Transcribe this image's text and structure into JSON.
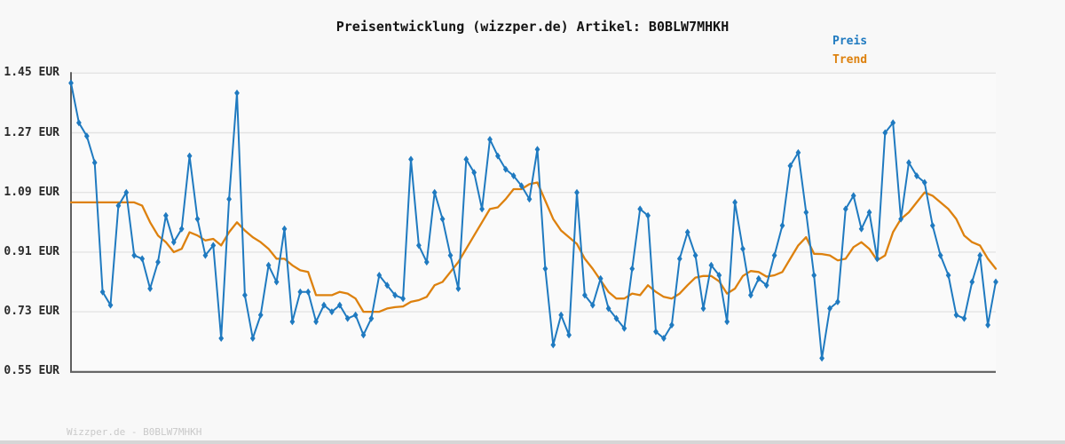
{
  "title": "Preisentwicklung (wizzper.de) Artikel: B0BLW7MHKH",
  "legend": {
    "preis": "Preis",
    "trend": "Trend"
  },
  "watermark": "Wizzper.de - B0BLW7MHKH",
  "colors": {
    "preis": "#1f7ac0",
    "trend": "#dd810e",
    "grid": "#e3e3e3",
    "axis": "#5f5f5f",
    "plot_background": "#fafafa",
    "page_background": "#f8f8f8",
    "title_text": "#141414",
    "tick_text": "#2b2b2b",
    "watermark_text": "#c9c9c9",
    "footer_bar": "#d6d6d6"
  },
  "chart_data": {
    "type": "line",
    "title": "Preisentwicklung (wizzper.de) Artikel: B0BLW7MHKH",
    "xlabel": "",
    "ylabel": "EUR",
    "ylim": [
      0.55,
      1.45
    ],
    "grid": "horizontal",
    "x_tick_labels": "none",
    "legend_position": "top-right",
    "y_ticks": [
      {
        "label": "1.45 EUR",
        "value": 1.45
      },
      {
        "label": "1.27 EUR",
        "value": 1.27
      },
      {
        "label": "1.09 EUR",
        "value": 1.09
      },
      {
        "label": "0.91 EUR",
        "value": 0.91
      },
      {
        "label": "0.73 EUR",
        "value": 0.73
      },
      {
        "label": "0.55 EUR",
        "value": 0.55
      }
    ],
    "series": [
      {
        "name": "Preis",
        "color": "#1f7ac0",
        "marker": "diamond",
        "values": [
          1.42,
          1.3,
          1.26,
          1.18,
          0.79,
          0.75,
          1.05,
          1.09,
          0.9,
          0.89,
          0.8,
          0.88,
          1.02,
          0.94,
          0.98,
          1.2,
          1.01,
          0.9,
          0.93,
          0.65,
          1.07,
          1.39,
          0.78,
          0.65,
          0.72,
          0.87,
          0.82,
          0.98,
          0.7,
          0.79,
          0.79,
          0.7,
          0.75,
          0.73,
          0.75,
          0.71,
          0.72,
          0.66,
          0.71,
          0.84,
          0.81,
          0.78,
          0.77,
          1.19,
          0.93,
          0.88,
          1.09,
          1.01,
          0.9,
          0.8,
          1.19,
          1.15,
          1.04,
          1.25,
          1.2,
          1.16,
          1.14,
          1.11,
          1.07,
          1.22,
          0.86,
          0.63,
          0.72,
          0.66,
          1.09,
          0.78,
          0.75,
          0.83,
          0.74,
          0.71,
          0.68,
          0.86,
          1.04,
          1.02,
          0.67,
          0.65,
          0.69,
          0.89,
          0.97,
          0.9,
          0.74,
          0.87,
          0.84,
          0.7,
          1.06,
          0.92,
          0.78,
          0.83,
          0.81,
          0.9,
          0.99,
          1.17,
          1.21,
          1.03,
          0.84,
          0.59,
          0.74,
          0.76,
          1.04,
          1.08,
          0.98,
          1.03,
          0.89,
          1.27,
          1.3,
          1.01,
          1.18,
          1.14,
          1.12,
          0.99,
          0.9,
          0.84,
          0.72,
          0.71,
          0.82,
          0.9,
          0.69,
          0.82
        ]
      },
      {
        "name": "Trend",
        "color": "#dd810e",
        "marker": "none",
        "values": [
          1.06,
          1.06,
          1.06,
          1.06,
          1.06,
          1.06,
          1.06,
          1.06,
          1.06,
          1.05,
          1.0,
          0.96,
          0.94,
          0.91,
          0.92,
          0.97,
          0.96,
          0.945,
          0.95,
          0.93,
          0.97,
          1.0,
          0.975,
          0.955,
          0.94,
          0.92,
          0.89,
          0.89,
          0.87,
          0.855,
          0.85,
          0.78,
          0.78,
          0.78,
          0.79,
          0.785,
          0.77,
          0.73,
          0.73,
          0.73,
          0.74,
          0.744,
          0.746,
          0.76,
          0.765,
          0.775,
          0.81,
          0.82,
          0.85,
          0.88,
          0.92,
          0.96,
          1.0,
          1.04,
          1.045,
          1.07,
          1.1,
          1.1,
          1.115,
          1.12,
          1.065,
          1.01,
          0.975,
          0.955,
          0.935,
          0.89,
          0.86,
          0.825,
          0.79,
          0.77,
          0.77,
          0.785,
          0.78,
          0.81,
          0.79,
          0.775,
          0.77,
          0.785,
          0.81,
          0.833,
          0.838,
          0.838,
          0.822,
          0.785,
          0.8,
          0.838,
          0.853,
          0.85,
          0.836,
          0.84,
          0.85,
          0.89,
          0.93,
          0.955,
          0.905,
          0.904,
          0.9,
          0.885,
          0.89,
          0.925,
          0.94,
          0.92,
          0.885,
          0.9,
          0.97,
          1.01,
          1.03,
          1.06,
          1.09,
          1.08,
          1.06,
          1.04,
          1.01,
          0.96,
          0.94,
          0.93,
          0.89,
          0.86
        ]
      }
    ]
  }
}
